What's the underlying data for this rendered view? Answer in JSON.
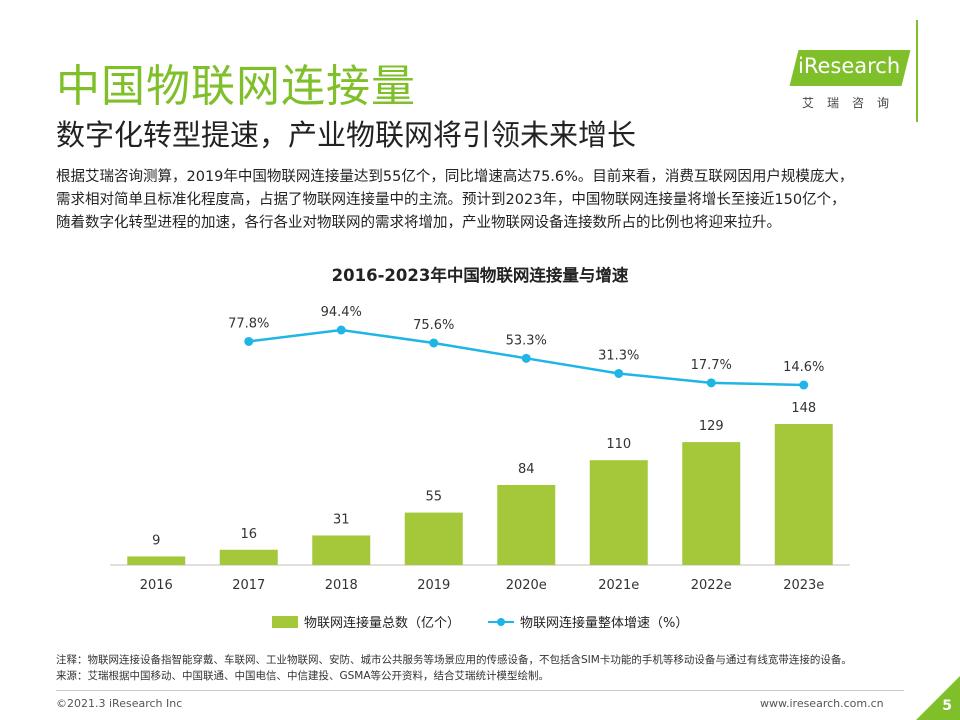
{
  "header": {
    "title": "中国物联网连接量",
    "subtitle": "数字化转型提速，产业物联网将引领未来增长",
    "logo_text": "iResearch",
    "logo_sub": "艾瑞咨询"
  },
  "body": {
    "lines": [
      "根据艾瑞咨询测算，2019年中国物联网连接量达到55亿个，同比增速高达75.6%。目前来看，消费互联网因用户规模庞大，",
      "需求相对简单且标准化程度高，占据了物联网连接量中的主流。预计到2023年，中国物联网连接量将增长至接近150亿个，",
      "随着数字化转型进程的加速，各行各业对物联网的需求将增加，产业物联网设备连接数所占的比例也将迎来拉升。"
    ]
  },
  "chart_data": {
    "type": "bar",
    "title": "2016-2023年中国物联网连接量与增速",
    "categories": [
      "2016",
      "2017",
      "2018",
      "2019",
      "2020e",
      "2021e",
      "2022e",
      "2023e"
    ],
    "series": [
      {
        "name": "物联网连接量总数（亿个）",
        "type": "bar",
        "values": [
          9,
          16,
          31,
          55,
          84,
          110,
          129,
          148
        ],
        "labels": [
          "9",
          "16",
          "31",
          "55",
          "84",
          "110",
          "129",
          "148"
        ]
      },
      {
        "name": "物联网连接量整体增速（%）",
        "type": "line",
        "values": [
          null,
          77.8,
          94.4,
          75.6,
          53.3,
          31.3,
          17.7,
          14.6
        ],
        "labels": [
          "",
          "77.8%",
          "94.4%",
          "75.6%",
          "53.3%",
          "31.3%",
          "17.7%",
          "14.6%"
        ]
      }
    ],
    "colors": {
      "bar": "#a4c839",
      "line": "#1fb5e6"
    },
    "legend_position": "bottom",
    "grid": false
  },
  "notes": {
    "note": "注释：物联网连接设备指智能穿戴、车联网、工业物联网、安防、城市公共服务等场景应用的传感设备，不包括含SIM卡功能的手机等移动设备与通过有线宽带连接的设备。",
    "source": "来源：艾瑞根据中国移动、中国联通、中国电信、中信建投、GSMA等公开资料，结合艾瑞统计模型绘制。"
  },
  "footer": {
    "copyright": "©2021.3 iResearch Inc",
    "url": "www.iresearch.com.cn",
    "page": "5"
  }
}
